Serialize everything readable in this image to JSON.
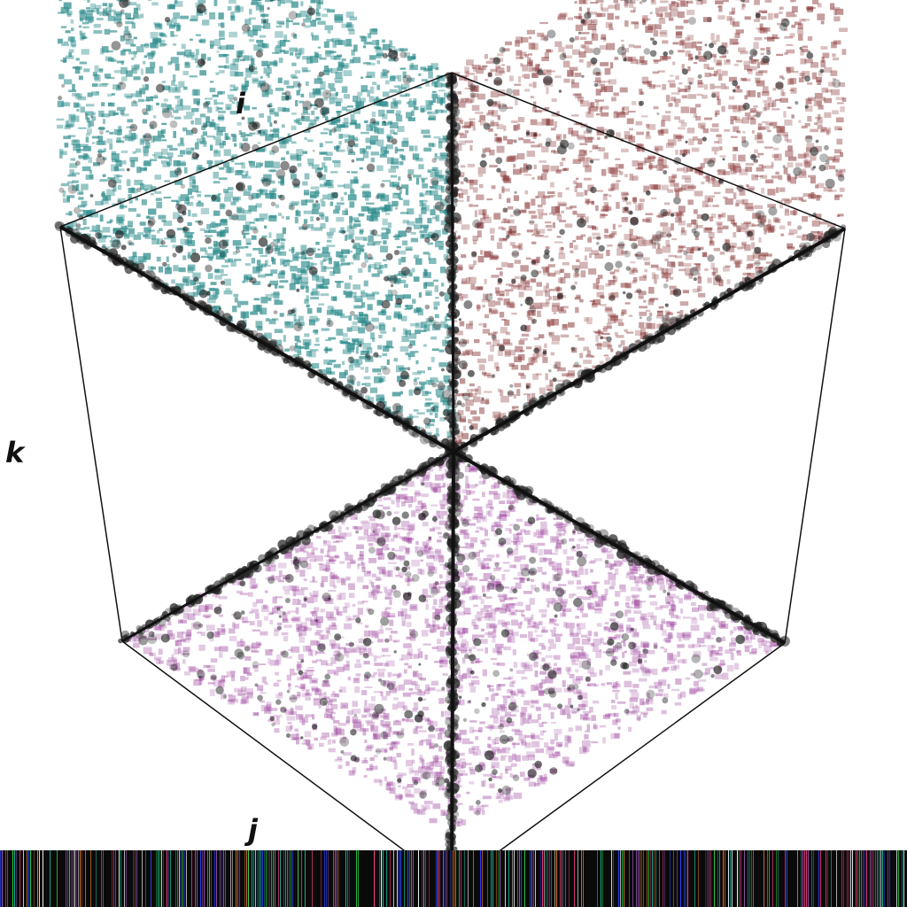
{
  "axes": {
    "i": "i",
    "j": "j",
    "k": "k"
  },
  "faces": {
    "ik_face": {
      "color": "#2e8c8c"
    },
    "ij_face": {
      "color": "#8b3a3a"
    },
    "jk_face": {
      "color": "#a04aa0"
    }
  },
  "points_color": "#222222",
  "edge_color": "#111111",
  "strip_colors": [
    "#0a0a0a",
    "#2ecc40",
    "#3344ff",
    "#ff4488",
    "#9b59b6",
    "#1abc9c",
    "#e67e22",
    "#ffffff"
  ]
}
